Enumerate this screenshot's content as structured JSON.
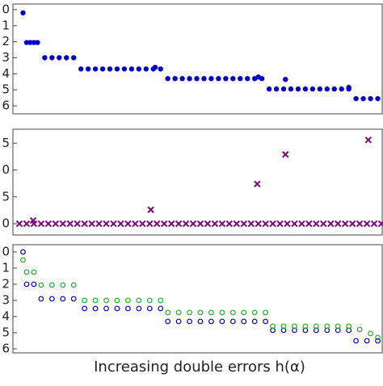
{
  "chart_data": [
    {
      "type": "scatter",
      "ylim": [
        6.5,
        -0.35
      ],
      "yticks": [
        0,
        1,
        2,
        3,
        4,
        5,
        6
      ],
      "xlim": [
        0,
        100
      ],
      "series": [
        {
          "color": "#0000cc",
          "marker": "dot",
          "x": [
            1,
            2,
            3,
            4,
            5,
            7,
            9,
            11,
            13,
            15,
            17,
            19,
            21,
            23,
            25,
            27,
            29,
            31,
            33,
            35,
            37,
            39,
            41,
            43,
            45,
            47,
            49,
            51,
            53,
            55,
            57,
            59,
            61,
            63,
            65,
            67,
            69,
            71,
            73,
            75,
            77,
            79,
            81,
            83,
            85,
            87,
            89,
            91,
            93,
            95,
            97,
            99,
            37.5,
            66,
            73.5,
            91
          ],
          "values": [
            0.2,
            2.05,
            2.05,
            2.05,
            2.05,
            3.0,
            3.0,
            3.0,
            3.0,
            3.0,
            3.7,
            3.7,
            3.7,
            3.7,
            3.7,
            3.7,
            3.7,
            3.7,
            3.7,
            3.7,
            3.7,
            3.7,
            4.3,
            4.3,
            4.3,
            4.3,
            4.3,
            4.3,
            4.3,
            4.3,
            4.3,
            4.3,
            4.3,
            4.3,
            4.3,
            4.3,
            4.95,
            4.95,
            4.95,
            4.95,
            4.95,
            4.95,
            4.95,
            4.95,
            4.95,
            4.95,
            4.95,
            4.95,
            5.55,
            5.55,
            5.55,
            5.55,
            3.6,
            4.2,
            4.35,
            4.85
          ]
        }
      ]
    },
    {
      "type": "scatter",
      "ylim": [
        -2.1,
        17.6
      ],
      "yticks": [
        {
          "value": 15,
          "label": "5"
        },
        {
          "value": 10,
          "label": "0"
        },
        5,
        0
      ],
      "xlim": [
        0,
        100
      ],
      "series": [
        {
          "color": "#800080",
          "marker": "cross",
          "x": [
            0,
            2,
            4,
            6,
            8,
            10,
            12,
            14,
            16,
            18,
            20,
            22,
            24,
            26,
            28,
            30,
            32,
            34,
            36,
            38,
            40,
            42,
            44,
            46,
            48,
            50,
            52,
            54,
            56,
            58,
            60,
            62,
            64,
            66,
            68,
            70,
            72,
            74,
            76,
            78,
            80,
            82,
            84,
            86,
            88,
            90,
            92,
            94,
            96,
            98,
            100,
            3.8,
            36.3,
            65.7,
            73.5,
            96.4
          ],
          "values": [
            0,
            0,
            0,
            0,
            0,
            0,
            0,
            0,
            0,
            0,
            0,
            0,
            0,
            0,
            0,
            0,
            0,
            0,
            0,
            0,
            0,
            0,
            0,
            0,
            0,
            0,
            0,
            0,
            0,
            0,
            0,
            0,
            0,
            0,
            0,
            0,
            0,
            0,
            0,
            0,
            0,
            0,
            0,
            0,
            0,
            0,
            0,
            0,
            0,
            0,
            0,
            0.6,
            2.6,
            7.4,
            12.9,
            15.6
          ]
        }
      ]
    },
    {
      "type": "scatter",
      "ylim": [
        6.25,
        -0.45
      ],
      "yticks": [
        0,
        1,
        2,
        3,
        4,
        5,
        6
      ],
      "xlim": [
        0,
        100
      ],
      "xlabel": "Increasing double errors h(α)",
      "series": [
        {
          "color": "#0000cc",
          "marker": "ring",
          "x": [
            1,
            2,
            4,
            6,
            9,
            12,
            15,
            18,
            21,
            24,
            27,
            30,
            33,
            36,
            39,
            41,
            44,
            47,
            50,
            53,
            56,
            59,
            62,
            65,
            68,
            70,
            73,
            76,
            79,
            82,
            85,
            88,
            91,
            93,
            96,
            99
          ],
          "values": [
            0,
            2.0,
            2.0,
            2.9,
            2.9,
            2.9,
            2.9,
            3.5,
            3.5,
            3.5,
            3.5,
            3.5,
            3.5,
            3.5,
            3.5,
            4.3,
            4.3,
            4.3,
            4.3,
            4.3,
            4.3,
            4.3,
            4.3,
            4.3,
            4.3,
            4.85,
            4.85,
            4.85,
            4.85,
            4.85,
            4.85,
            4.85,
            4.85,
            5.5,
            5.5,
            5.5
          ]
        },
        {
          "color": "#22aa22",
          "marker": "ring",
          "x": [
            1,
            2,
            4,
            6,
            9,
            12,
            15,
            18,
            21,
            24,
            27,
            30,
            33,
            36,
            39,
            41,
            44,
            47,
            50,
            53,
            56,
            59,
            62,
            65,
            68,
            70,
            73,
            76,
            79,
            82,
            85,
            88,
            91,
            94,
            97,
            99
          ],
          "values": [
            0.5,
            1.25,
            1.25,
            2.05,
            2.05,
            2.05,
            2.05,
            3.0,
            3.0,
            3.0,
            3.0,
            3.0,
            3.0,
            3.0,
            3.0,
            3.75,
            3.75,
            3.75,
            3.75,
            3.75,
            3.75,
            3.75,
            3.75,
            3.75,
            3.75,
            4.6,
            4.6,
            4.6,
            4.6,
            4.6,
            4.6,
            4.6,
            4.6,
            4.8,
            5.05,
            5.3
          ]
        }
      ]
    }
  ]
}
